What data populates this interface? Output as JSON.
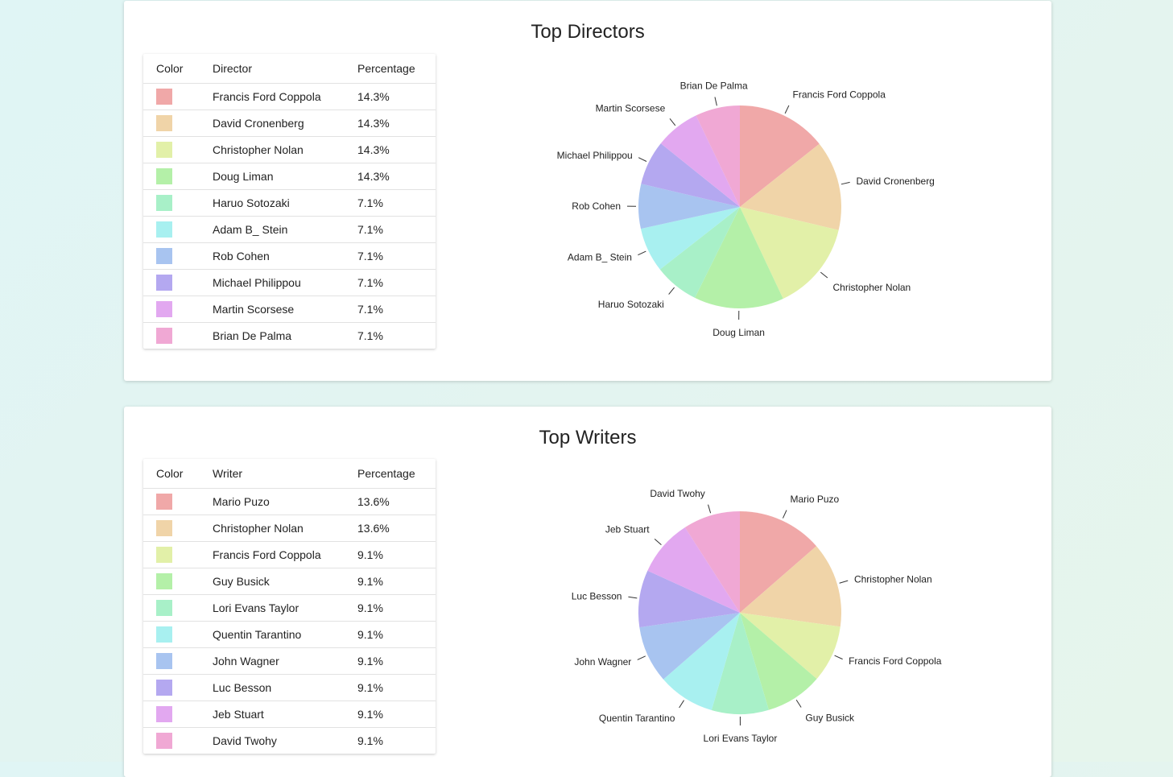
{
  "chart_data": [
    {
      "type": "pie",
      "title": "Top Directors",
      "table_headers": [
        "Color",
        "Director",
        "Percentage"
      ],
      "categories": [
        "Francis Ford Coppola",
        "David Cronenberg",
        "Christopher Nolan",
        "Doug Liman",
        "Haruo Sotozaki",
        "Adam B_ Stein",
        "Rob Cohen",
        "Michael Philippou",
        "Martin Scorsese",
        "Brian De Palma"
      ],
      "values": [
        14.3,
        14.3,
        14.3,
        14.3,
        7.1,
        7.1,
        7.1,
        7.1,
        7.1,
        7.1
      ],
      "labels": [
        "14.3%",
        "14.3%",
        "14.3%",
        "14.3%",
        "7.1%",
        "7.1%",
        "7.1%",
        "7.1%",
        "7.1%",
        "7.1%"
      ],
      "colors": [
        "#f0a8a8",
        "#f0d4a8",
        "#e2f0a8",
        "#b4f0a8",
        "#a8f0c8",
        "#a8f0f0",
        "#a8c4f0",
        "#b4a8f0",
        "#e2a8f0",
        "#f0a8d4"
      ]
    },
    {
      "type": "pie",
      "title": "Top Writers",
      "table_headers": [
        "Color",
        "Writer",
        "Percentage"
      ],
      "categories": [
        "Mario Puzo",
        "Christopher Nolan",
        "Francis Ford Coppola",
        "Guy Busick",
        "Lori Evans Taylor",
        "Quentin Tarantino",
        "John Wagner",
        "Luc Besson",
        "Jeb Stuart",
        "David Twohy"
      ],
      "values": [
        13.6,
        13.6,
        9.1,
        9.1,
        9.1,
        9.1,
        9.1,
        9.1,
        9.1,
        9.1
      ],
      "labels": [
        "13.6%",
        "13.6%",
        "9.1%",
        "9.1%",
        "9.1%",
        "9.1%",
        "9.1%",
        "9.1%",
        "9.1%",
        "9.1%"
      ],
      "colors": [
        "#f0a8a8",
        "#f0d4a8",
        "#e2f0a8",
        "#b4f0a8",
        "#a8f0c8",
        "#a8f0f0",
        "#a8c4f0",
        "#b4a8f0",
        "#e2a8f0",
        "#f0a8d4"
      ]
    }
  ]
}
